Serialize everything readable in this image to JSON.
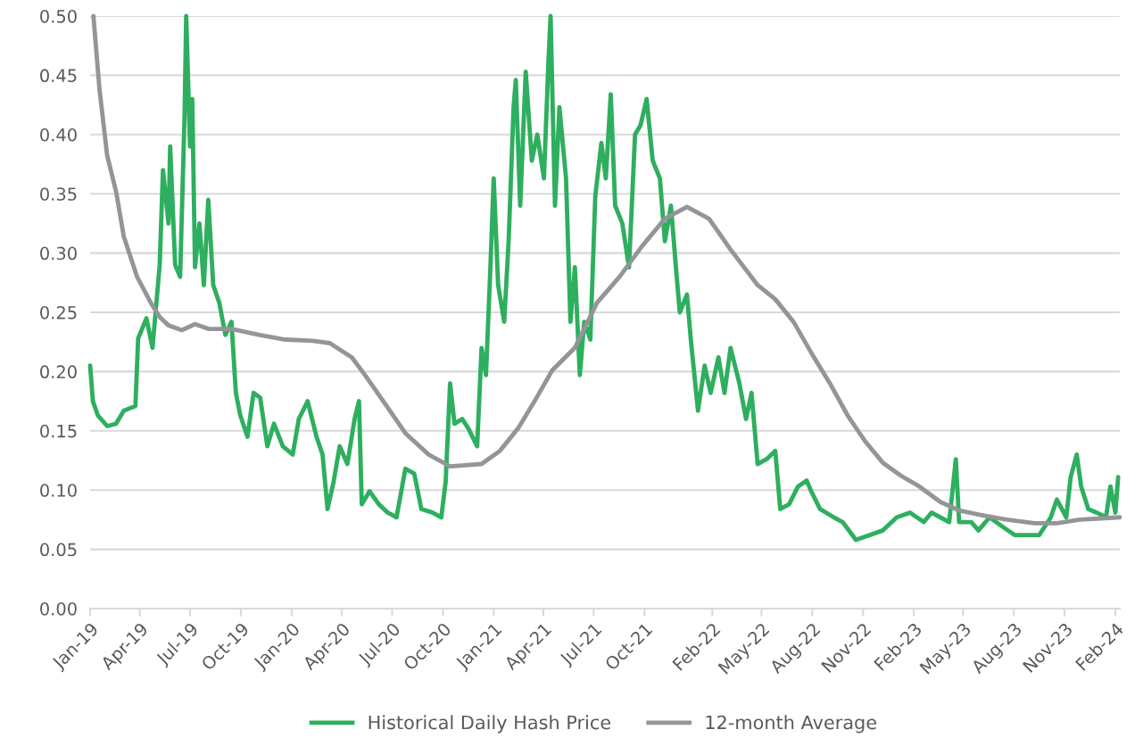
{
  "chart_data": {
    "type": "line",
    "x": [
      "2019-01-01",
      "2019-01-06",
      "2019-01-15",
      "2019-02-01",
      "2019-02-17",
      "2019-03-03",
      "2019-03-24",
      "2019-03-29",
      "2019-04-13",
      "2019-04-24",
      "2019-05-07",
      "2019-05-13",
      "2019-05-23",
      "2019-05-26",
      "2019-06-04",
      "2019-06-13",
      "2019-06-21",
      "2019-06-24",
      "2019-07-01",
      "2019-07-05",
      "2019-07-10",
      "2019-07-18",
      "2019-07-26",
      "2019-08-03",
      "2019-08-12",
      "2019-08-23",
      "2019-09-03",
      "2019-09-14",
      "2019-09-22",
      "2019-09-30",
      "2019-10-13",
      "2019-10-24",
      "2019-11-05",
      "2019-11-18",
      "2019-11-30",
      "2019-12-16",
      "2020-01-03",
      "2020-01-14",
      "2020-01-30",
      "2020-02-15",
      "2020-02-26",
      "2020-03-06",
      "2020-03-17",
      "2020-03-28",
      "2020-04-11",
      "2020-04-24",
      "2020-05-02",
      "2020-05-07",
      "2020-05-21",
      "2020-06-07",
      "2020-06-23",
      "2020-07-09",
      "2020-07-25",
      "2020-08-10",
      "2020-08-23",
      "2020-09-12",
      "2020-09-28",
      "2020-10-06",
      "2020-10-14",
      "2020-10-22",
      "2020-11-05",
      "2020-11-16",
      "2020-12-02",
      "2020-12-10",
      "2020-12-18",
      "2020-12-26",
      "2021-01-01",
      "2021-01-09",
      "2021-01-20",
      "2021-01-28",
      "2021-02-06",
      "2021-02-10",
      "2021-02-18",
      "2021-02-28",
      "2021-03-11",
      "2021-03-21",
      "2021-04-02",
      "2021-04-10",
      "2021-04-14",
      "2021-04-22",
      "2021-04-30",
      "2021-05-12",
      "2021-05-20",
      "2021-05-28",
      "2021-06-06",
      "2021-06-14",
      "2021-06-25",
      "2021-07-04",
      "2021-07-15",
      "2021-07-23",
      "2021-08-01",
      "2021-08-09",
      "2021-08-22",
      "2021-09-03",
      "2021-09-14",
      "2021-09-24",
      "2021-10-05",
      "2021-10-16",
      "2021-10-29",
      "2021-11-07",
      "2021-11-18",
      "2021-11-27",
      "2021-12-04",
      "2021-12-17",
      "2021-12-24",
      "2022-01-06",
      "2022-01-18",
      "2022-01-29",
      "2022-02-12",
      "2022-02-23",
      "2022-03-06",
      "2022-03-22",
      "2022-04-03",
      "2022-04-13",
      "2022-04-24",
      "2022-05-10",
      "2022-05-26",
      "2022-06-04",
      "2022-06-20",
      "2022-07-06",
      "2022-07-22",
      "2022-07-30",
      "2022-08-15",
      "2022-09-09",
      "2022-09-25",
      "2022-10-19",
      "2022-11-13",
      "2022-12-07",
      "2023-01-01",
      "2023-01-25",
      "2023-02-19",
      "2023-03-05",
      "2023-03-21",
      "2023-04-06",
      "2023-04-18",
      "2023-04-24",
      "2023-05-16",
      "2023-05-29",
      "2023-06-18",
      "2023-07-12",
      "2023-08-03",
      "2023-08-22",
      "2023-09-16",
      "2023-10-07",
      "2023-10-18",
      "2023-11-04",
      "2023-11-12",
      "2023-11-23",
      "2023-12-01",
      "2023-12-14",
      "2023-12-29",
      "2024-01-15",
      "2024-01-23",
      "2024-02-01",
      "2024-02-06"
    ],
    "series": [
      {
        "name": "Historical Daily Hash Price",
        "color": "#2eaf5f",
        "values": [
          0.205,
          0.175,
          0.163,
          0.154,
          0.156,
          0.167,
          0.171,
          0.228,
          0.245,
          0.22,
          0.29,
          0.37,
          0.325,
          0.39,
          0.29,
          0.28,
          0.415,
          0.5,
          0.39,
          0.43,
          0.288,
          0.325,
          0.273,
          0.345,
          0.273,
          0.258,
          0.231,
          0.242,
          0.182,
          0.163,
          0.145,
          0.182,
          0.178,
          0.137,
          0.156,
          0.137,
          0.13,
          0.16,
          0.175,
          0.145,
          0.13,
          0.084,
          0.107,
          0.137,
          0.122,
          0.16,
          0.175,
          0.088,
          0.099,
          0.088,
          0.081,
          0.077,
          0.118,
          0.114,
          0.084,
          0.081,
          0.077,
          0.107,
          0.19,
          0.156,
          0.16,
          0.152,
          0.137,
          0.22,
          0.197,
          0.288,
          0.363,
          0.273,
          0.242,
          0.31,
          0.423,
          0.446,
          0.34,
          0.453,
          0.378,
          0.4,
          0.363,
          0.46,
          0.5,
          0.34,
          0.423,
          0.363,
          0.242,
          0.288,
          0.197,
          0.242,
          0.227,
          0.348,
          0.393,
          0.363,
          0.434,
          0.34,
          0.325,
          0.288,
          0.4,
          0.408,
          0.43,
          0.378,
          0.363,
          0.31,
          0.34,
          0.288,
          0.25,
          0.265,
          0.227,
          0.167,
          0.205,
          0.182,
          0.212,
          0.182,
          0.22,
          0.19,
          0.16,
          0.182,
          0.122,
          0.126,
          0.133,
          0.084,
          0.088,
          0.103,
          0.108,
          0.099,
          0.084,
          0.077,
          0.073,
          0.058,
          0.062,
          0.066,
          0.077,
          0.081,
          0.073,
          0.081,
          0.077,
          0.073,
          0.126,
          0.073,
          0.073,
          0.066,
          0.077,
          0.069,
          0.062,
          0.062,
          0.062,
          0.077,
          0.092,
          0.077,
          0.111,
          0.13,
          0.103,
          0.084,
          0.081,
          0.077,
          0.103,
          0.081,
          0.111
        ]
      },
      {
        "name": "12-month Average",
        "color": "#939598",
        "x": [
          "2019-01-07",
          "2019-01-18",
          "2019-02-01",
          "2019-02-17",
          "2019-03-03",
          "2019-03-27",
          "2019-04-21",
          "2019-05-07",
          "2019-05-23",
          "2019-06-16",
          "2019-07-10",
          "2019-08-04",
          "2019-09-14",
          "2019-11-02",
          "2019-12-20",
          "2020-02-07",
          "2020-03-10",
          "2020-04-19",
          "2020-05-13",
          "2020-06-15",
          "2020-07-25",
          "2020-09-05",
          "2020-10-14",
          "2020-12-10",
          "2021-01-12",
          "2021-02-14",
          "2021-03-16",
          "2021-04-17",
          "2021-05-28",
          "2021-07-07",
          "2021-08-17",
          "2021-09-27",
          "2021-11-07",
          "2021-12-17",
          "2022-01-26",
          "2022-03-06",
          "2022-04-24",
          "2022-05-26",
          "2022-06-28",
          "2022-07-30",
          "2022-09-02",
          "2022-10-04",
          "2022-11-05",
          "2022-12-07",
          "2023-01-09",
          "2023-02-11",
          "2023-03-21",
          "2023-04-23",
          "2023-06-02",
          "2023-07-20",
          "2023-09-08",
          "2023-10-18",
          "2023-11-28",
          "2024-02-09"
        ],
        "values": [
          0.5,
          0.438,
          0.382,
          0.352,
          0.314,
          0.28,
          0.258,
          0.246,
          0.239,
          0.235,
          0.24,
          0.236,
          0.236,
          0.231,
          0.227,
          0.226,
          0.224,
          0.212,
          0.197,
          0.175,
          0.148,
          0.13,
          0.12,
          0.122,
          0.133,
          0.152,
          0.175,
          0.201,
          0.22,
          0.258,
          0.28,
          0.306,
          0.329,
          0.339,
          0.329,
          0.303,
          0.273,
          0.261,
          0.242,
          0.216,
          0.19,
          0.163,
          0.141,
          0.123,
          0.112,
          0.103,
          0.09,
          0.083,
          0.079,
          0.075,
          0.072,
          0.072,
          0.075,
          0.077
        ]
      }
    ],
    "xlim": [
      "2019-01-01",
      "2024-02-09"
    ],
    "xticks": [
      {
        "value": "2019-01-01",
        "label": "Jan-19"
      },
      {
        "value": "2019-04-01",
        "label": "Apr-19"
      },
      {
        "value": "2019-07-01",
        "label": "Jul-19"
      },
      {
        "value": "2019-10-01",
        "label": "Oct-19"
      },
      {
        "value": "2020-01-01",
        "label": "Jan-20"
      },
      {
        "value": "2020-04-01",
        "label": "Apr-20"
      },
      {
        "value": "2020-07-01",
        "label": "Jul-20"
      },
      {
        "value": "2020-10-01",
        "label": "Oct-20"
      },
      {
        "value": "2021-01-01",
        "label": "Jan-21"
      },
      {
        "value": "2021-04-01",
        "label": "Apr-21"
      },
      {
        "value": "2021-07-01",
        "label": "Jul-21"
      },
      {
        "value": "2021-10-01",
        "label": "Oct-21"
      },
      {
        "value": "2022-02-01",
        "label": "Feb-22"
      },
      {
        "value": "2022-05-01",
        "label": "May-22"
      },
      {
        "value": "2022-08-01",
        "label": "Aug-22"
      },
      {
        "value": "2022-11-01",
        "label": "Nov-22"
      },
      {
        "value": "2023-02-01",
        "label": "Feb-23"
      },
      {
        "value": "2023-05-01",
        "label": "May-23"
      },
      {
        "value": "2023-08-01",
        "label": "Aug-23"
      },
      {
        "value": "2023-11-01",
        "label": "Nov-23"
      },
      {
        "value": "2024-02-01",
        "label": "Feb-24"
      }
    ],
    "ylim": [
      0,
      0.5
    ],
    "yticks": [
      {
        "value": 0,
        "label": "0.00"
      },
      {
        "value": 0.05,
        "label": "0.05"
      },
      {
        "value": 0.1,
        "label": "0.10"
      },
      {
        "value": 0.15,
        "label": "0.15"
      },
      {
        "value": 0.2,
        "label": "0.20"
      },
      {
        "value": 0.25,
        "label": "0.25"
      },
      {
        "value": 0.3,
        "label": "0.30"
      },
      {
        "value": 0.35,
        "label": "0.35"
      },
      {
        "value": 0.4,
        "label": "0.40"
      },
      {
        "value": 0.45,
        "label": "0.45"
      },
      {
        "value": 0.5,
        "label": "0.50"
      }
    ],
    "grid": "y",
    "legend": "bottom",
    "marker": "none",
    "line_style": "solid"
  }
}
